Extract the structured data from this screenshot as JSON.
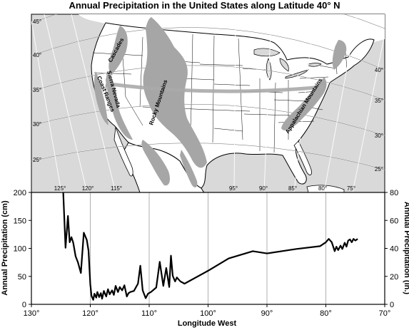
{
  "title": "Annual Precipitation in the United States along Latitude 40° N",
  "map": {
    "latitude_labels_left": [
      "45°",
      "40°",
      "35°",
      "30°",
      "25°"
    ],
    "latitude_labels_right": [
      "40°",
      "35°",
      "30°",
      "25°"
    ],
    "longitude_labels": [
      "125°",
      "120°",
      "115°",
      "95°",
      "90°",
      "85°",
      "80°",
      "75°"
    ],
    "mountain_labels": [
      "Cascades",
      "Sierra Nevada",
      "Coast Ranges",
      "Rocky Mountains",
      "Appalachian Mountains"
    ],
    "colors": {
      "ocean": "#d9d9d9",
      "land": "#ffffff",
      "mountains": "#a6a6a6",
      "latitude_band": "#aaaaaa"
    }
  },
  "chart_data": {
    "type": "line",
    "title": "Annual Precipitation in the United States along Latitude 40° N",
    "xlabel": "Longitude West",
    "ylabel_left": "Annual Precipitation (cm)",
    "ylabel_right": "Annual Precipitation (in.)",
    "xlim": [
      130,
      70
    ],
    "ylim_left": [
      0,
      200
    ],
    "ylim_right": [
      0,
      80
    ],
    "x_ticks": [
      "130°",
      "120°",
      "110°",
      "100°",
      "90°",
      "80°",
      "70°"
    ],
    "x_tick_values": [
      130,
      120,
      110,
      100,
      90,
      80,
      70
    ],
    "y_ticks_left": [
      "0",
      "50",
      "100",
      "150",
      "200"
    ],
    "y_ticks_left_values": [
      0,
      50,
      100,
      150,
      200
    ],
    "y_ticks_right": [
      "0",
      "20",
      "40",
      "60",
      "80"
    ],
    "y_ticks_right_values": [
      0,
      20,
      40,
      60,
      80
    ],
    "grid": "vertical",
    "series": [
      {
        "color": "#000000",
        "x": [
          124.6,
          124.2,
          123.8,
          123.5,
          123.2,
          122.9,
          122.5,
          122.1,
          121.6,
          121.1,
          120.6,
          120.3,
          120.0,
          119.8,
          119.5,
          119.3,
          119.0,
          118.8,
          118.5,
          118.2,
          118.0,
          117.7,
          117.3,
          117.0,
          116.7,
          116.3,
          116.0,
          115.7,
          115.3,
          115.0,
          114.6,
          114.2,
          113.8,
          113.5,
          113.2,
          112.6,
          111.9,
          111.5,
          111.1,
          110.6,
          110.2,
          109.7,
          108.8,
          108.2,
          107.6,
          107.1,
          106.6,
          106.3,
          106.0,
          105.6,
          105.3,
          104.7,
          104.0,
          100.0,
          96.5,
          92.4,
          90.0,
          85.0,
          81.0,
          80.0,
          79.5,
          79.0,
          78.5,
          78.2,
          77.9,
          77.5,
          77.2,
          76.8,
          76.5,
          76.2,
          75.9,
          75.6,
          75.3,
          75.0,
          74.6
        ],
        "values": [
          200,
          101,
          158,
          111,
          120,
          110,
          86,
          75,
          56,
          128,
          115,
          96,
          36,
          15,
          8,
          19,
          12,
          22,
          13,
          20,
          10,
          24,
          14,
          27,
          18,
          25,
          17,
          33,
          22,
          31,
          25,
          34,
          14,
          20,
          22,
          24,
          37,
          69,
          25,
          11,
          19,
          22,
          30,
          76,
          33,
          65,
          31,
          87,
          51,
          41,
          48,
          41,
          37,
          60,
          82,
          95,
          91,
          99,
          104,
          111,
          117,
          111,
          95,
          103,
          97,
          105,
          99,
          110,
          103,
          114,
          116,
          111,
          117,
          114,
          117
        ]
      }
    ]
  }
}
